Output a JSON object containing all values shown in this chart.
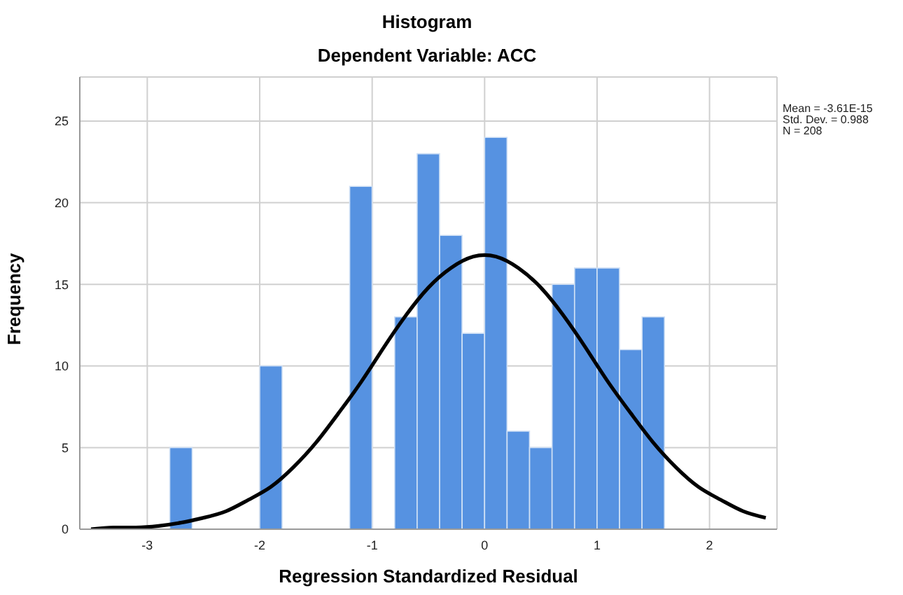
{
  "chart_data": {
    "type": "histogram",
    "title": "Histogram",
    "subtitle": "Dependent Variable: ACC",
    "xlabel": "Regression Standardized Residual",
    "ylabel": "Frequency",
    "bins": [
      -2.8,
      -2.6,
      -2.4,
      -2.2,
      -2.0,
      -1.8,
      -1.6,
      -1.4,
      -1.2,
      -1.0,
      -0.8,
      -0.6,
      -0.4,
      -0.2,
      0,
      0.2,
      0.4,
      0.6,
      0.8,
      1.0,
      1.2,
      1.4,
      1.6
    ],
    "values": [
      5,
      0,
      0,
      0,
      10,
      0,
      0,
      0,
      21,
      0,
      13,
      23,
      18,
      12,
      24,
      6,
      5,
      15,
      16,
      16,
      11,
      13
    ],
    "color": "#5692e1",
    "series": [
      {
        "type": "line",
        "color": "#000000",
        "x": [
          -3.5,
          -3.3,
          -3.1,
          -2.9,
          -2.7,
          -2.5,
          -2.3,
          -2.1,
          -1.9,
          -1.7,
          -1.5,
          -1.3,
          -1.1,
          -0.9,
          -0.7,
          -0.5,
          -0.3,
          -0.1,
          0.1,
          0.3,
          0.5,
          0.7,
          0.9,
          1.1,
          1.3,
          1.5,
          1.7,
          1.9,
          2.1,
          2.3,
          2.5
        ],
        "values": [
          0.0,
          0.1,
          0.1,
          0.2,
          0.4,
          0.7,
          1.1,
          1.8,
          2.6,
          3.8,
          5.3,
          7.1,
          9.0,
          11.1,
          13.1,
          14.8,
          16.0,
          16.7,
          16.7,
          16.0,
          14.8,
          13.1,
          11.1,
          9.0,
          7.1,
          5.3,
          3.8,
          2.6,
          1.8,
          1.1,
          0.7
        ]
      }
    ],
    "xlim": [
      -3.6,
      2.6
    ],
    "xticks": [
      -3,
      -2,
      -1,
      0,
      1,
      2
    ],
    "ylim": [
      0,
      27.7
    ],
    "yticks": [
      0,
      5,
      10,
      15,
      20,
      25
    ],
    "grid": true,
    "marker": "none",
    "line_style": "solid",
    "annotations": [
      "Mean = -3.61E-15",
      "Std. Dev. = 0.988",
      "N = 208"
    ]
  }
}
